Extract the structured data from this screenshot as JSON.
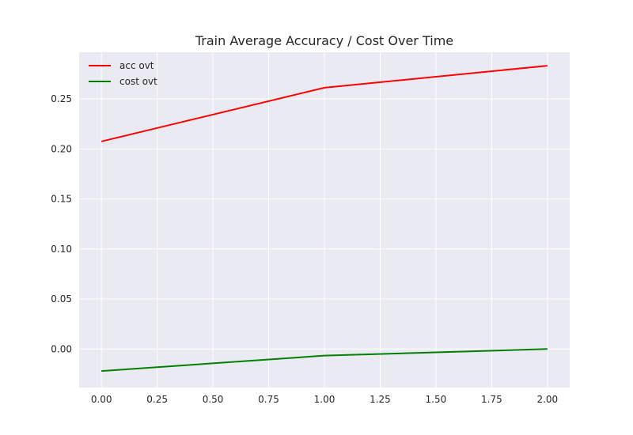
{
  "chart_data": {
    "type": "line",
    "title": "Train Average Accuracy / Cost Over Time",
    "xlabel": "",
    "ylabel": "",
    "x": [
      0,
      1,
      2
    ],
    "series": [
      {
        "name": "acc ovt",
        "color": "#ff0000",
        "values": [
          0.2075,
          0.2612,
          0.2832
        ]
      },
      {
        "name": "cost ovt",
        "color": "#008000",
        "values": [
          -0.022,
          -0.0066,
          0.0
        ]
      }
    ],
    "xlim": [
      -0.1,
      2.1
    ],
    "ylim": [
      -0.0385,
      0.2967
    ],
    "xticks": [
      0.0,
      0.25,
      0.5,
      0.75,
      1.0,
      1.25,
      1.5,
      1.75,
      2.0
    ],
    "xtick_labels": [
      "0.00",
      "0.25",
      "0.50",
      "0.75",
      "1.00",
      "1.25",
      "1.50",
      "1.75",
      "2.00"
    ],
    "yticks": [
      0.0,
      0.05,
      0.1,
      0.15,
      0.2,
      0.25
    ],
    "ytick_labels": [
      "0.00",
      "0.05",
      "0.10",
      "0.15",
      "0.20",
      "0.25"
    ],
    "grid": true,
    "legend": "top-left",
    "style": {
      "plot_background": "#eaeaf2",
      "grid_color": "#ffffff"
    }
  }
}
